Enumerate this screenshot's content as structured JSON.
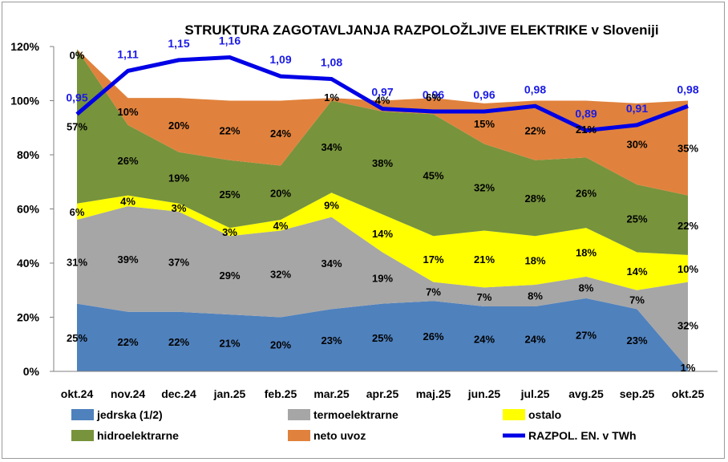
{
  "chart_data": {
    "type": "area",
    "title": "STRUKTURA ZAGOTAVLJANJA RAZPOLOŽLJIVE ELEKTRIKE v Sloveniji",
    "categories": [
      "okt.24",
      "nov.24",
      "dec.24",
      "jan.25",
      "feb.25",
      "mar.25",
      "apr.25",
      "maj.25",
      "jun.25",
      "jul.25",
      "avg.25",
      "sep.25",
      "okt.25"
    ],
    "ylim": [
      0,
      120
    ],
    "yticks": [
      "0%",
      "20%",
      "40%",
      "60%",
      "80%",
      "100%",
      "120%"
    ],
    "grid": false,
    "legend_position": "bottom",
    "series": [
      {
        "name": "jedrska (1/2)",
        "color": "#4f81bd",
        "values": [
          25,
          22,
          22,
          21,
          20,
          23,
          25,
          26,
          24,
          24,
          27,
          23,
          1
        ],
        "labels": [
          "25%",
          "22%",
          "22%",
          "21%",
          "20%",
          "23%",
          "25%",
          "26%",
          "24%",
          "24%",
          "27%",
          "23%",
          "1%"
        ]
      },
      {
        "name": "termoelektrarne",
        "color": "#a6a6a6",
        "values": [
          31,
          39,
          37,
          29,
          32,
          34,
          19,
          7,
          7,
          8,
          8,
          7,
          32
        ],
        "labels": [
          "31%",
          "39%",
          "37%",
          "29%",
          "32%",
          "34%",
          "19%",
          "7%",
          "7%",
          "8%",
          "8%",
          "7%",
          "32%"
        ]
      },
      {
        "name": "ostalo",
        "color": "#ffff00",
        "values": [
          6,
          4,
          3,
          3,
          4,
          9,
          14,
          17,
          21,
          18,
          18,
          14,
          10
        ],
        "labels": [
          "6%",
          "4%",
          "3%",
          "3%",
          "4%",
          "9%",
          "14%",
          "17%",
          "21%",
          "18%",
          "18%",
          "14%",
          "10%"
        ]
      },
      {
        "name": "hidroelektrarne",
        "color": "#77933c",
        "values": [
          57,
          26,
          19,
          25,
          20,
          34,
          38,
          45,
          32,
          28,
          26,
          25,
          22
        ],
        "labels": [
          "57%",
          "26%",
          "19%",
          "25%",
          "20%",
          "34%",
          "38%",
          "45%",
          "32%",
          "28%",
          "26%",
          "25%",
          "22%"
        ]
      },
      {
        "name": "neto uvoz",
        "color": "#e0823d",
        "values": [
          0,
          10,
          20,
          22,
          24,
          1,
          4,
          6,
          15,
          22,
          21,
          30,
          35
        ],
        "labels": [
          "0%",
          "10%",
          "20%",
          "22%",
          "24%",
          "1%",
          "4%",
          "6%",
          "15%",
          "22%",
          "21%",
          "30%",
          "35%"
        ]
      }
    ],
    "line_series": {
      "name": "RAZPOL. EN. v TWh",
      "color": "#0000e6",
      "values": [
        0.95,
        1.11,
        1.15,
        1.16,
        1.09,
        1.08,
        0.97,
        0.96,
        0.96,
        0.98,
        0.89,
        0.91,
        0.98
      ],
      "labels": [
        "0,95",
        "1,11",
        "1,15",
        "1,16",
        "1,09",
        "1,08",
        "0,97",
        "0,96",
        "0,96",
        "0,98",
        "0,89",
        "0,91",
        "0,98"
      ]
    }
  }
}
